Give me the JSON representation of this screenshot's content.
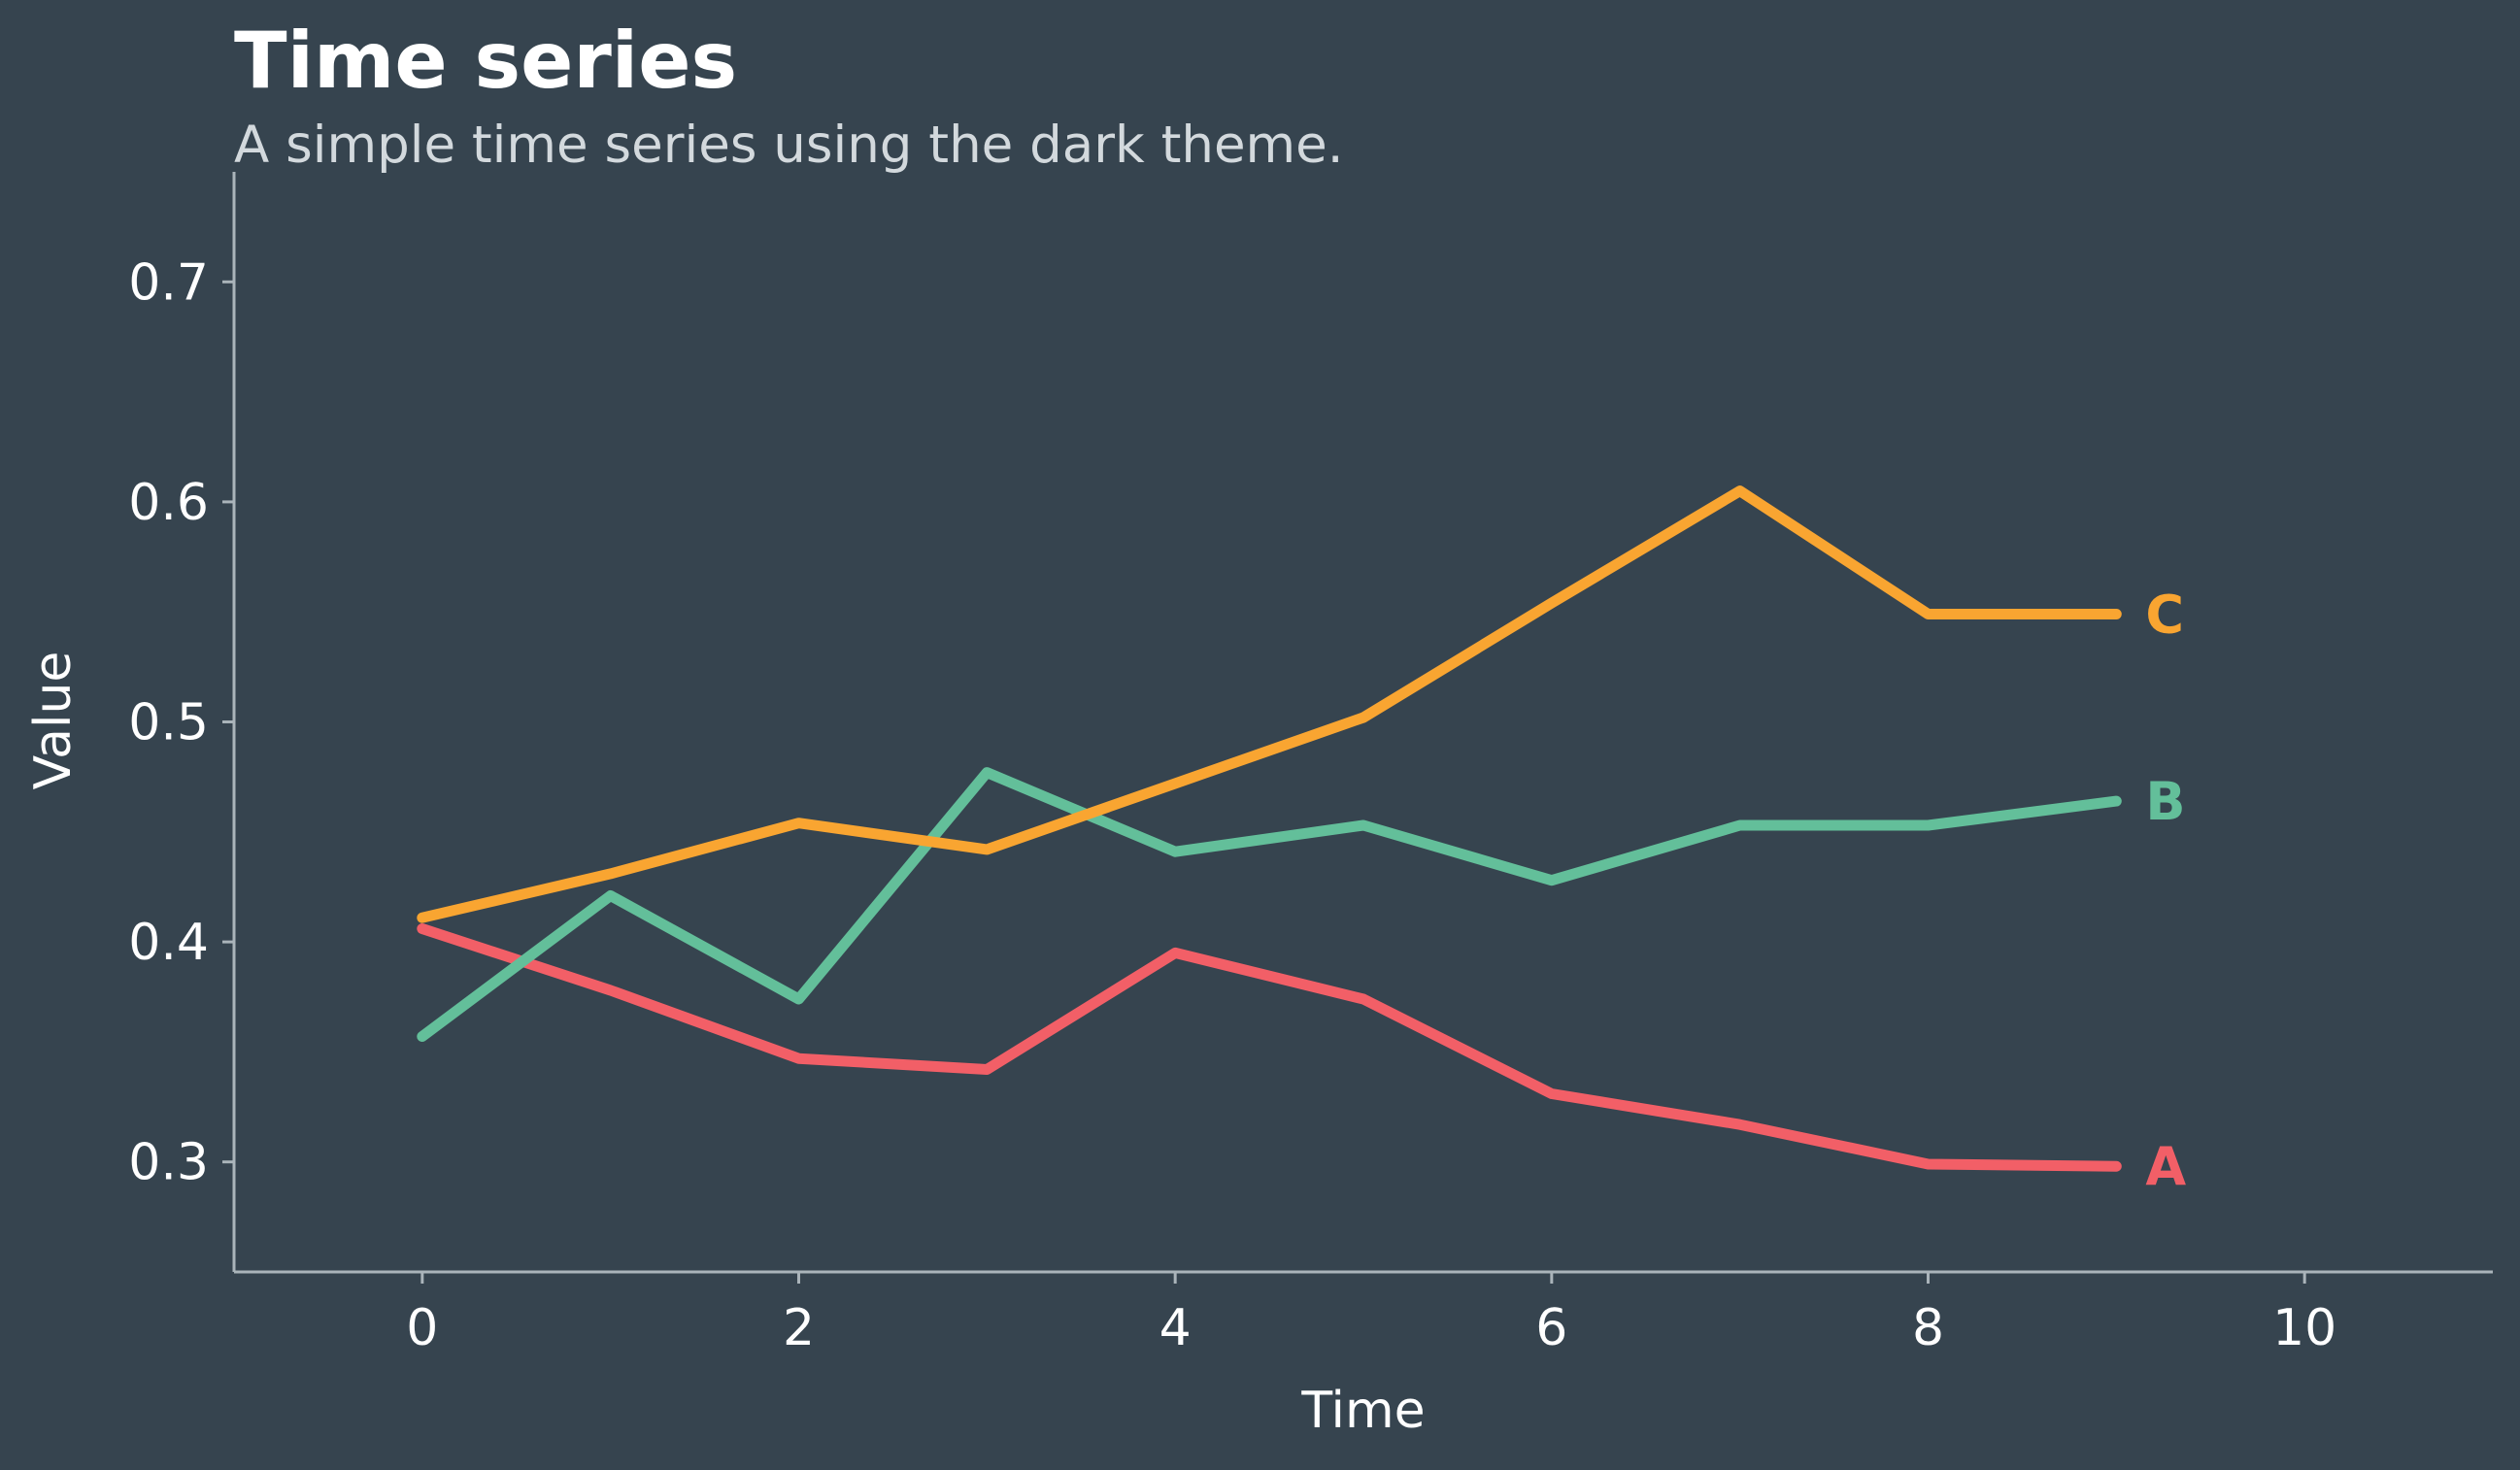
{
  "chart_data": {
    "type": "line",
    "title": "Time series",
    "subtitle": "A simple time series using the dark theme.",
    "xlabel": "Time",
    "ylabel": "Value",
    "xlim": [
      -1,
      11
    ],
    "ylim": [
      0.25,
      0.75
    ],
    "xticks": [
      0,
      2,
      4,
      6,
      8,
      10
    ],
    "yticks": [
      0.3,
      0.4,
      0.5,
      0.6,
      0.7
    ],
    "x": [
      0,
      1,
      2,
      3,
      4,
      5,
      6,
      7,
      8,
      9
    ],
    "grid": false,
    "series": [
      {
        "name": "A",
        "color": "#f25f67",
        "values": [
          0.406,
          0.378,
          0.347,
          0.342,
          0.395,
          0.374,
          0.331,
          0.317,
          0.299,
          0.298
        ]
      },
      {
        "name": "B",
        "color": "#63bf9a",
        "values": [
          0.357,
          0.421,
          0.374,
          0.477,
          0.441,
          0.453,
          0.428,
          0.453,
          0.453,
          0.464
        ]
      },
      {
        "name": "C",
        "color": "#f9a531",
        "values": [
          0.411,
          0.431,
          0.454,
          0.442,
          0.472,
          0.502,
          0.554,
          0.605,
          0.549,
          0.549
        ]
      }
    ]
  },
  "colors": {
    "background": "#36444f",
    "axis": "#aab4ba",
    "text": "#ffffff",
    "subtitle": "#d3d9dd"
  }
}
